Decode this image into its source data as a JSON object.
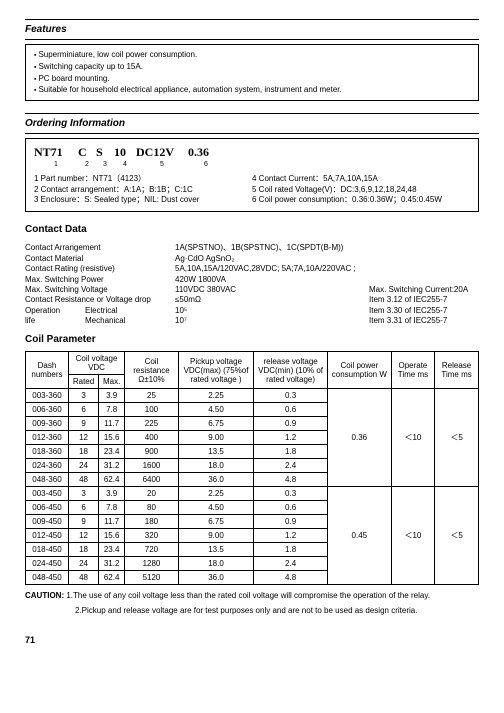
{
  "features_title": "Features",
  "features": [
    "Superminiature, low coil power consumption.",
    "Switching capacity up to 15A.",
    "PC board mounting.",
    "Suitable for household electrical appliance, automation system, instrument and meter."
  ],
  "ordering_title": "Ordering Information",
  "part_segments": [
    "NT71",
    "C",
    "S",
    "10",
    "DC12V",
    "0.36"
  ],
  "part_numbers": [
    "1",
    "2",
    "3",
    "4",
    "5",
    "6"
  ],
  "ordering_left": [
    "1 Part number：NT71（4123）",
    "2 Contact arrangement：A:1A；B:1B；C:1C",
    "3 Enclosure：S: Sealed type；NIL: Dust cover"
  ],
  "ordering_right": [
    "4 Contact Current：5A,7A,10A,15A",
    "5 Coil rated Voltage(V)：DC:3,6,9,12,18,24,48",
    "6 Coil power consumption：0.36:0.36W；0.45:0.45W"
  ],
  "contact_title": "Contact Data",
  "contact": {
    "arrangement_l": "Contact Arrangement",
    "arrangement_v": "1A(SPSTNO)、1B(SPSTNC)、1C(SPDT(B-M))",
    "material_l": "Contact Material",
    "material_v": "Ag·CdO      AgSnO₂",
    "rating_l": "Contact Rating (resistive)",
    "rating_v": "5A,10A,15A/120VAC,28VDC; 5A;7A,10A/220VAC ;",
    "maxpow_l": "Max. Switching Power",
    "maxpow_v": "420W    1800VA",
    "maxvolt_l": "Max. Switching Voltage",
    "maxvolt_v": "110VDC 380VAC",
    "maxcur_r": "Max. Switching Current:20A",
    "res_l": "Contact Resistance or Voltage drop",
    "res_v": "≤50mΩ",
    "res_r": "Item 3.12 of IEC255-7",
    "op_l": "Operation",
    "op_m": "Electrical",
    "op_v": "10⁵",
    "op_r": "Item 3.30 of IEC255-7",
    "life_l": "life",
    "life_m": "Mechanical",
    "life_v": "10⁷",
    "life_r": "Item 3.31 of IEC255-7"
  },
  "coil_title": "Coil Parameter",
  "coil_headers": {
    "dash": "Dash numbers",
    "volt": "Coil voltage VDC",
    "rated": "Rated",
    "max": "Max.",
    "res": "Coil resistance Ω±10%",
    "pickup": "Pickup voltage VDC(max) (75%of rated voltage )",
    "release": "release voltage VDC(min) (10% of rated voltage)",
    "power": "Coil power consumption W",
    "operate": "Operate Time ms",
    "reltime": "Release Time ms"
  },
  "coil_rows_a": [
    [
      "003-360",
      "3",
      "3.9",
      "25",
      "2.25",
      "0.3"
    ],
    [
      "006-360",
      "6",
      "7.8",
      "100",
      "4.50",
      "0.6"
    ],
    [
      "009-360",
      "9",
      "11.7",
      "225",
      "6.75",
      "0.9"
    ],
    [
      "012-360",
      "12",
      "15.6",
      "400",
      "9.00",
      "1.2"
    ],
    [
      "018-360",
      "18",
      "23.4",
      "900",
      "13.5",
      "1.8"
    ],
    [
      "024-360",
      "24",
      "31.2",
      "1600",
      "18.0",
      "2.4"
    ],
    [
      "048-360",
      "48",
      "62.4",
      "6400",
      "36.0",
      "4.8"
    ]
  ],
  "coil_merge_a": {
    "power": "0.36",
    "operate": "＜10",
    "release": "＜5"
  },
  "coil_rows_b": [
    [
      "003-450",
      "3",
      "3.9",
      "20",
      "2.25",
      "0.3"
    ],
    [
      "006-450",
      "6",
      "7.8",
      "80",
      "4.50",
      "0.6"
    ],
    [
      "009-450",
      "9",
      "11.7",
      "180",
      "6.75",
      "0.9"
    ],
    [
      "012-450",
      "12",
      "15.6",
      "320",
      "9.00",
      "1.2"
    ],
    [
      "018-450",
      "18",
      "23.4",
      "720",
      "13.5",
      "1.8"
    ],
    [
      "024-450",
      "24",
      "31.2",
      "1280",
      "18.0",
      "2.4"
    ],
    [
      "048-450",
      "48",
      "62.4",
      "5120",
      "36.0",
      "4.8"
    ]
  ],
  "coil_merge_b": {
    "power": "0.45",
    "operate": "＜10",
    "release": "＜5"
  },
  "caution_label": "CAUTION:",
  "caution_1": "1.The use of any coil voltage less than the rated coil voltage will compromise the operation of the relay.",
  "caution_2": "2.Pickup and release voltage are for test purposes only and are not to be used as design criteria.",
  "page_number": "71"
}
